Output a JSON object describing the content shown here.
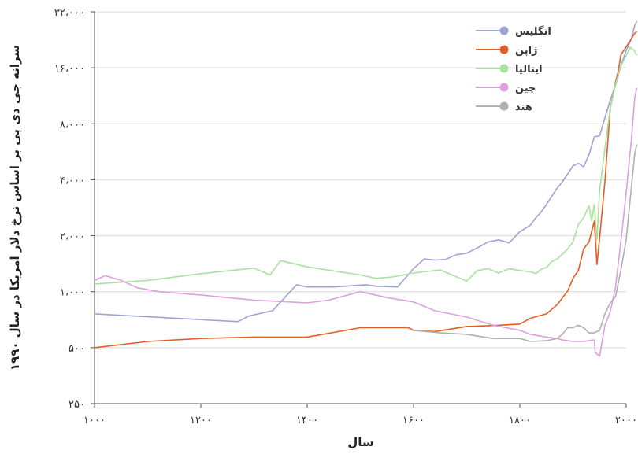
{
  "chart_data": {
    "type": "line",
    "title": "",
    "xlabel": "سال",
    "ylabel": "سرانه جی دی پی بر اساس نرخ دلار امریکا در سال ۱۹۹۰",
    "xlim": [
      1000,
      2000
    ],
    "ylim": [
      250,
      32000
    ],
    "yscale": "log2",
    "grid": true,
    "legend_position": "top-right",
    "x_ticks": [
      {
        "value": 1000,
        "label": "۱۰۰۰"
      },
      {
        "value": 1200,
        "label": "۱۲۰۰"
      },
      {
        "value": 1400,
        "label": "۱۴۰۰"
      },
      {
        "value": 1600,
        "label": "۱۶۰۰"
      },
      {
        "value": 1800,
        "label": "۱۸۰۰"
      },
      {
        "value": 2000,
        "label": "۲۰۰۰"
      }
    ],
    "y_ticks": [
      {
        "value": 250,
        "label": "۲۵۰"
      },
      {
        "value": 500,
        "label": "۵۰۰"
      },
      {
        "value": 1000,
        "label": "۱،۰۰۰"
      },
      {
        "value": 2000,
        "label": "۲،۰۰۰"
      },
      {
        "value": 4000,
        "label": "۴،۰۰۰"
      },
      {
        "value": 8000,
        "label": "۸،۰۰۰"
      },
      {
        "value": 16000,
        "label": "۱۶،۰۰۰"
      },
      {
        "value": 32000,
        "label": "۳۲،۰۰۰"
      }
    ],
    "series": [
      {
        "name": "انگلیس",
        "color": "#9ea3d6",
        "points": [
          [
            1000,
            760
          ],
          [
            1270,
            690
          ],
          [
            1290,
            740
          ],
          [
            1335,
            790
          ],
          [
            1380,
            1090
          ],
          [
            1400,
            1060
          ],
          [
            1450,
            1060
          ],
          [
            1510,
            1090
          ],
          [
            1530,
            1070
          ],
          [
            1570,
            1060
          ],
          [
            1600,
            1330
          ],
          [
            1610,
            1410
          ],
          [
            1620,
            1500
          ],
          [
            1640,
            1480
          ],
          [
            1660,
            1490
          ],
          [
            1680,
            1580
          ],
          [
            1700,
            1610
          ],
          [
            1720,
            1720
          ],
          [
            1740,
            1850
          ],
          [
            1760,
            1900
          ],
          [
            1780,
            1830
          ],
          [
            1800,
            2100
          ],
          [
            1820,
            2280
          ],
          [
            1830,
            2500
          ],
          [
            1840,
            2680
          ],
          [
            1850,
            2950
          ],
          [
            1860,
            3250
          ],
          [
            1870,
            3600
          ],
          [
            1880,
            3900
          ],
          [
            1890,
            4300
          ],
          [
            1900,
            4750
          ],
          [
            1910,
            4900
          ],
          [
            1920,
            4700
          ],
          [
            1930,
            5450
          ],
          [
            1940,
            6800
          ],
          [
            1950,
            6900
          ],
          [
            1960,
            8600
          ],
          [
            1970,
            10700
          ],
          [
            1980,
            12900
          ],
          [
            1990,
            16400
          ],
          [
            2000,
            19800
          ],
          [
            2010,
            23000
          ],
          [
            2016,
            27000
          ],
          [
            2020,
            28500
          ]
        ]
      },
      {
        "name": "ژاپن",
        "color": "#e15e26",
        "points": [
          [
            1000,
            500
          ],
          [
            1100,
            540
          ],
          [
            1200,
            560
          ],
          [
            1300,
            570
          ],
          [
            1400,
            570
          ],
          [
            1500,
            640
          ],
          [
            1590,
            640
          ],
          [
            1600,
            620
          ],
          [
            1640,
            610
          ],
          [
            1700,
            650
          ],
          [
            1760,
            660
          ],
          [
            1800,
            670
          ],
          [
            1820,
            720
          ],
          [
            1850,
            760
          ],
          [
            1870,
            850
          ],
          [
            1890,
            1010
          ],
          [
            1900,
            1180
          ],
          [
            1910,
            1300
          ],
          [
            1920,
            1700
          ],
          [
            1930,
            1850
          ],
          [
            1935,
            2100
          ],
          [
            1940,
            2400
          ],
          [
            1945,
            1400
          ],
          [
            1950,
            1950
          ],
          [
            1960,
            3900
          ],
          [
            1970,
            9700
          ],
          [
            1975,
            11300
          ],
          [
            1980,
            13400
          ],
          [
            1985,
            15300
          ],
          [
            1990,
            18800
          ],
          [
            2000,
            20700
          ],
          [
            2008,
            22500
          ],
          [
            2016,
            24500
          ],
          [
            2020,
            25000
          ]
        ]
      },
      {
        "name": "ایتالیا",
        "color": "#a8e2a0",
        "points": [
          [
            1000,
            1100
          ],
          [
            1100,
            1150
          ],
          [
            1200,
            1250
          ],
          [
            1300,
            1340
          ],
          [
            1330,
            1230
          ],
          [
            1350,
            1470
          ],
          [
            1400,
            1360
          ],
          [
            1500,
            1230
          ],
          [
            1530,
            1180
          ],
          [
            1560,
            1200
          ],
          [
            1600,
            1260
          ],
          [
            1650,
            1310
          ],
          [
            1700,
            1140
          ],
          [
            1720,
            1300
          ],
          [
            1740,
            1330
          ],
          [
            1760,
            1260
          ],
          [
            1780,
            1330
          ],
          [
            1800,
            1300
          ],
          [
            1820,
            1280
          ],
          [
            1830,
            1250
          ],
          [
            1840,
            1320
          ],
          [
            1850,
            1350
          ],
          [
            1860,
            1450
          ],
          [
            1870,
            1500
          ],
          [
            1880,
            1590
          ],
          [
            1890,
            1700
          ],
          [
            1900,
            1850
          ],
          [
            1910,
            2300
          ],
          [
            1920,
            2500
          ],
          [
            1930,
            2900
          ],
          [
            1935,
            2400
          ],
          [
            1940,
            2950
          ],
          [
            1945,
            1900
          ],
          [
            1950,
            3500
          ],
          [
            1960,
            5900
          ],
          [
            1970,
            9700
          ],
          [
            1980,
            13100
          ],
          [
            1990,
            16300
          ],
          [
            2000,
            18700
          ],
          [
            2008,
            20600
          ],
          [
            2016,
            19700
          ],
          [
            2020,
            18700
          ]
        ]
      },
      {
        "name": "چین",
        "color": "#dca0de",
        "points": [
          [
            1000,
            1150
          ],
          [
            1020,
            1220
          ],
          [
            1050,
            1150
          ],
          [
            1080,
            1050
          ],
          [
            1120,
            1000
          ],
          [
            1200,
            960
          ],
          [
            1300,
            900
          ],
          [
            1400,
            870
          ],
          [
            1440,
            900
          ],
          [
            1500,
            1000
          ],
          [
            1550,
            930
          ],
          [
            1600,
            880
          ],
          [
            1640,
            790
          ],
          [
            1700,
            730
          ],
          [
            1750,
            660
          ],
          [
            1800,
            620
          ],
          [
            1820,
            590
          ],
          [
            1850,
            570
          ],
          [
            1870,
            560
          ],
          [
            1880,
            550
          ],
          [
            1900,
            540
          ],
          [
            1920,
            540
          ],
          [
            1940,
            550
          ],
          [
            1942,
            470
          ],
          [
            1950,
            450
          ],
          [
            1960,
            660
          ],
          [
            1970,
            780
          ],
          [
            1980,
            1060
          ],
          [
            1990,
            1870
          ],
          [
            2000,
            3400
          ],
          [
            2010,
            6700
          ],
          [
            2016,
            11000
          ],
          [
            2020,
            12500
          ]
        ]
      },
      {
        "name": "هند",
        "color": "#b0b0b0",
        "points": [
          [
            1600,
            620
          ],
          [
            1650,
            600
          ],
          [
            1700,
            590
          ],
          [
            1750,
            560
          ],
          [
            1800,
            560
          ],
          [
            1820,
            540
          ],
          [
            1850,
            545
          ],
          [
            1870,
            560
          ],
          [
            1880,
            590
          ],
          [
            1890,
            640
          ],
          [
            1900,
            640
          ],
          [
            1910,
            660
          ],
          [
            1920,
            640
          ],
          [
            1930,
            600
          ],
          [
            1940,
            600
          ],
          [
            1950,
            620
          ],
          [
            1960,
            760
          ],
          [
            1970,
            870
          ],
          [
            1980,
            940
          ],
          [
            1990,
            1310
          ],
          [
            2000,
            1900
          ],
          [
            2010,
            3700
          ],
          [
            2016,
            5500
          ],
          [
            2020,
            6200
          ]
        ]
      }
    ]
  }
}
